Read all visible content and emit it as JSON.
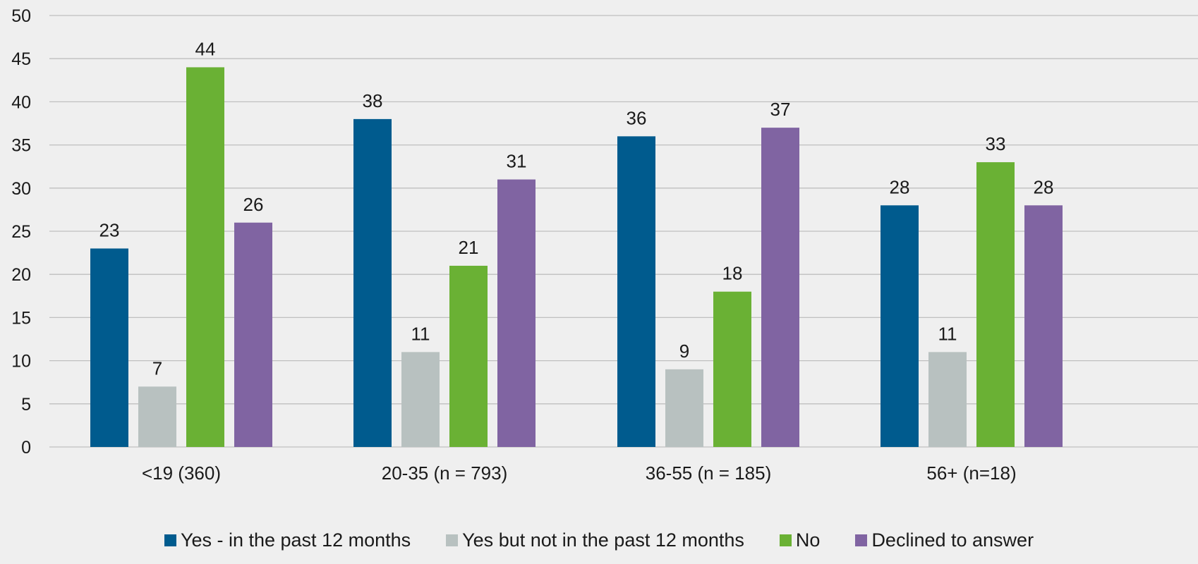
{
  "chart_data": {
    "type": "bar",
    "categories": [
      "<19 (360)",
      "20-35 (n = 793)",
      "36-55 (n = 185)",
      "56+ (n=18)"
    ],
    "series": [
      {
        "name": "Yes - in the past 12 months",
        "color": "#005b8e",
        "values": [
          23,
          38,
          36,
          28
        ]
      },
      {
        "name": "Yes but not in the past 12 months",
        "color": "#b8c1c0",
        "values": [
          7,
          11,
          9,
          11
        ]
      },
      {
        "name": "No",
        "color": "#6ab134",
        "values": [
          44,
          21,
          18,
          33
        ]
      },
      {
        "name": "Declined to answer",
        "color": "#8064a2",
        "values": [
          26,
          31,
          37,
          28
        ]
      }
    ],
    "ylim": [
      0,
      50
    ],
    "yticks": [
      0,
      5,
      10,
      15,
      20,
      25,
      30,
      35,
      40,
      45,
      50
    ],
    "grid": true,
    "legend": "bottom",
    "title": "",
    "xlabel": "",
    "ylabel": ""
  }
}
